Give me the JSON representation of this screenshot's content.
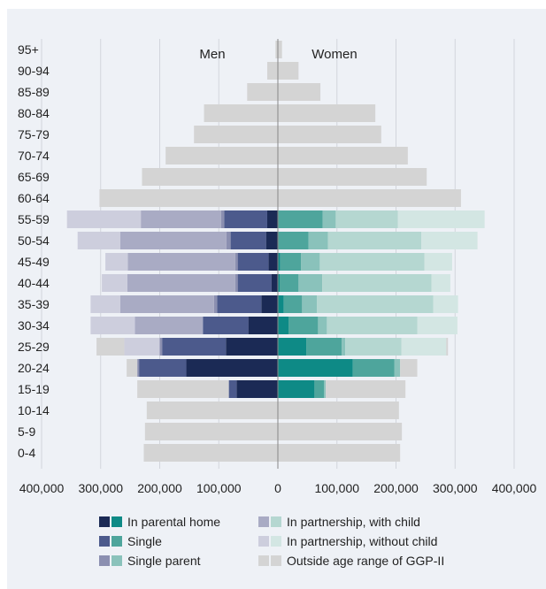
{
  "chart_data": {
    "type": "bar",
    "subtype": "population-pyramid",
    "group_labels": {
      "left": "Men",
      "right": "Women"
    },
    "categories": [
      "95+",
      "90-94",
      "85-89",
      "80-84",
      "75-79",
      "70-74",
      "65-69",
      "60-64",
      "55-59",
      "50-54",
      "45-49",
      "40-44",
      "35-39",
      "30-34",
      "25-29",
      "20-24",
      "15-19",
      "10-14",
      "5-9",
      "0-4"
    ],
    "xlim": [
      -400000,
      400000
    ],
    "xticks": [
      -400000,
      -300000,
      -200000,
      -100000,
      0,
      100000,
      200000,
      300000,
      400000
    ],
    "xtick_labels": [
      "400,000",
      "300,000",
      "200,000",
      "100,000",
      "0",
      "100,000",
      "200,000",
      "300,000",
      "400,000"
    ],
    "grid": true,
    "legend_position": "bottom",
    "series": [
      {
        "name": "In parental home",
        "color_men": "#1b2a55",
        "color_women": "#0e8a86",
        "men": [
          0,
          0,
          0,
          0,
          0,
          0,
          0,
          0,
          18000,
          20000,
          16000,
          11000,
          28000,
          50000,
          88000,
          155000,
          70000,
          0,
          0,
          0
        ],
        "women": [
          0,
          0,
          0,
          0,
          0,
          0,
          0,
          0,
          0,
          0,
          4000,
          3000,
          10000,
          18000,
          48000,
          127000,
          62000,
          0,
          0,
          0
        ]
      },
      {
        "name": "Single",
        "color_men": "#4c5a8c",
        "color_women": "#4ea59c",
        "men": [
          0,
          0,
          0,
          0,
          0,
          0,
          0,
          0,
          73000,
          60000,
          52000,
          57000,
          75000,
          77000,
          108000,
          80000,
          13000,
          0,
          0,
          0
        ],
        "women": [
          0,
          0,
          0,
          0,
          0,
          0,
          0,
          0,
          76000,
          52000,
          35000,
          32000,
          31000,
          50000,
          60000,
          70000,
          16000,
          0,
          0,
          0
        ]
      },
      {
        "name": "Single parent",
        "color_men": "#8b8fb0",
        "color_women": "#8ac2bb",
        "men": [
          0,
          0,
          0,
          0,
          0,
          0,
          0,
          0,
          5000,
          7000,
          4000,
          4000,
          5000,
          0,
          4000,
          3000,
          0,
          0,
          0,
          0
        ],
        "women": [
          0,
          0,
          0,
          0,
          0,
          0,
          0,
          0,
          22000,
          33000,
          32000,
          40000,
          25000,
          15000,
          6000,
          10000,
          3000,
          0,
          0,
          0
        ]
      },
      {
        "name": "In partnership, with child",
        "color_men": "#a9abc4",
        "color_women": "#b5d7d1",
        "men": [
          0,
          0,
          0,
          0,
          0,
          0,
          0,
          0,
          136000,
          180000,
          182000,
          183000,
          159000,
          115000,
          0,
          0,
          0,
          0,
          0,
          0
        ],
        "women": [
          0,
          0,
          0,
          0,
          0,
          0,
          0,
          0,
          105000,
          158000,
          177000,
          185000,
          197000,
          153000,
          95000,
          0,
          0,
          0,
          0,
          0
        ]
      },
      {
        "name": "In partnership, without child",
        "color_men": "#cdcedd",
        "color_women": "#d3e6e3",
        "men": [
          0,
          0,
          0,
          0,
          0,
          0,
          0,
          0,
          125000,
          72000,
          38000,
          43000,
          50000,
          75000,
          60000,
          0,
          0,
          0,
          0,
          0
        ],
        "women": [
          0,
          0,
          0,
          0,
          0,
          0,
          0,
          0,
          147000,
          95000,
          47000,
          32000,
          42000,
          68000,
          76000,
          0,
          0,
          0,
          0,
          0
        ]
      },
      {
        "name": "Outside age range of GGP-II",
        "color_men": "#d4d4d4",
        "color_women": "#d4d4d4",
        "men": [
          4000,
          18000,
          52000,
          125000,
          142000,
          190000,
          230000,
          302000,
          0,
          0,
          0,
          0,
          0,
          0,
          47000,
          18000,
          155000,
          222000,
          225000,
          227000
        ],
        "women": [
          7000,
          35000,
          72000,
          165000,
          175000,
          220000,
          252000,
          310000,
          0,
          0,
          0,
          0,
          0,
          0,
          3000,
          29000,
          135000,
          205000,
          210000,
          207000
        ]
      }
    ]
  }
}
